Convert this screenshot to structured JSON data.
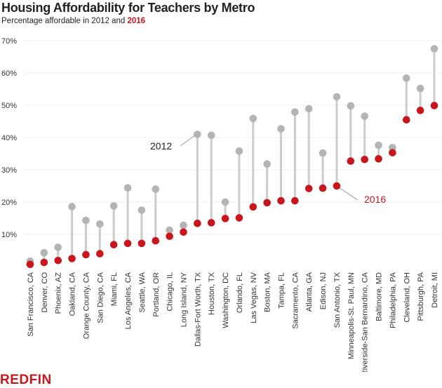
{
  "chart_data": {
    "type": "dumbbell",
    "title": "Housing Affordability for Teachers by Metro",
    "subtitle_prefix": "Percentage affordable in 2012 and ",
    "subtitle_highlight": "2016",
    "ylim": [
      0,
      70
    ],
    "yticks": [
      "10%",
      "20%",
      "30%",
      "40%",
      "50%",
      "60%",
      "70%"
    ],
    "ytick_values": [
      10,
      20,
      30,
      40,
      50,
      60,
      70
    ],
    "grid": true,
    "categories": [
      "San Francisco, CA",
      "Denver, CO",
      "Phoenix, AZ",
      "Oakland, CA",
      "Orange County, CA",
      "San Diego, CA",
      "Miami, FL",
      "Los Angeles, CA",
      "Seattle, WA",
      "Portland, OR",
      "Chicago, IL",
      "Long Island, NY",
      "Dallas-Fort Worth, TX",
      "Houston, TX",
      "Washington, DC",
      "Orlando, FL",
      "Las Vegas, NV",
      "Boston, MA",
      "Tampa, FL",
      "Sacramento, CA",
      "Atlanta, GA",
      "Edison, NJ",
      "San Antonio, TX",
      "Minneapolis-St. Paul, MN",
      "Riverside-San Bernardino, CA",
      "Baltimore, MD",
      "Philadelphia, PA",
      "Cleveland, OH",
      "Pittsburgh, PA",
      "Detroit, MI"
    ],
    "series": [
      {
        "name": "2012",
        "color": "#b4b4b4",
        "values": [
          1.7,
          4.3,
          6.0,
          18.6,
          14.3,
          13.2,
          18.8,
          24.4,
          17.5,
          24.0,
          11.3,
          12.8,
          41.0,
          40.7,
          20.0,
          35.8,
          45.9,
          31.8,
          42.7,
          47.9,
          48.9,
          35.2,
          52.6,
          49.8,
          46.6,
          37.6,
          36.9,
          58.4,
          55.2,
          67.5
        ]
      },
      {
        "name": "2016",
        "color": "#c8161d",
        "values": [
          0.7,
          1.3,
          1.9,
          2.5,
          3.7,
          4.0,
          6.8,
          7.2,
          7.2,
          8.0,
          9.4,
          10.7,
          13.4,
          13.6,
          14.9,
          15.1,
          18.5,
          19.8,
          20.4,
          20.4,
          24.2,
          24.3,
          25.0,
          32.7,
          33.2,
          33.4,
          35.3,
          45.5,
          48.4,
          49.9
        ]
      }
    ],
    "annotations": [
      {
        "text": "2012",
        "series": "2012",
        "category": "Dallas-Fort Worth, TX"
      },
      {
        "text": "2016",
        "series": "2016",
        "category": "San Antonio, TX"
      }
    ]
  },
  "logo": "REDFIN"
}
